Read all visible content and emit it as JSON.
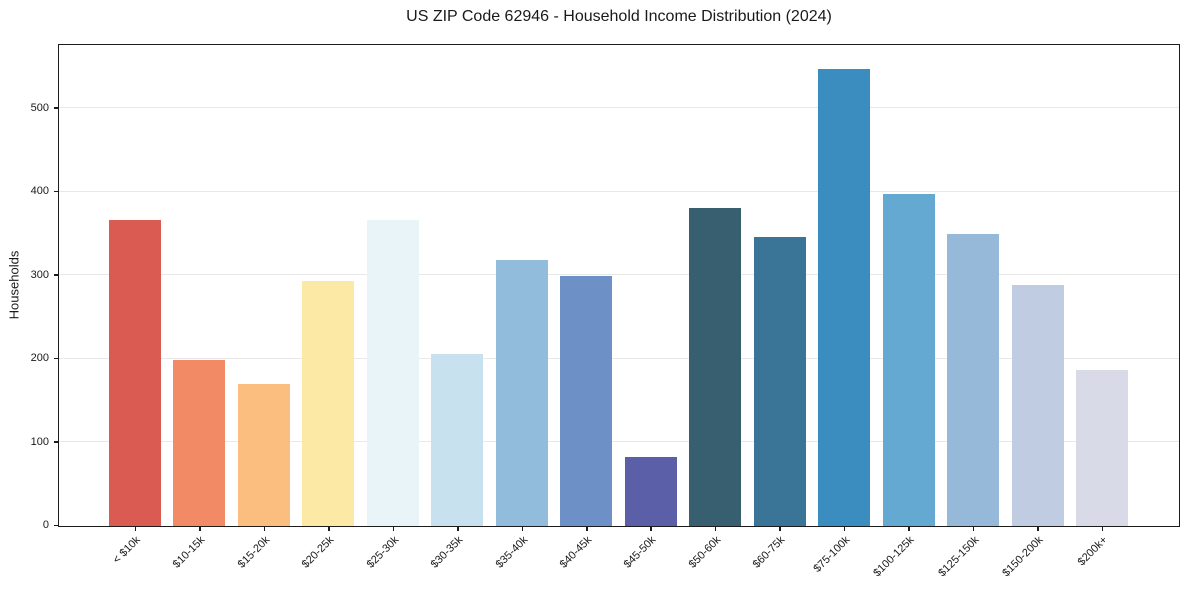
{
  "figure": {
    "background_color": "#ffffff"
  },
  "chart_data": {
    "type": "bar",
    "title": "US ZIP Code 62946 - Household Income Distribution (2024)",
    "xlabel": "",
    "ylabel": "Households",
    "categories": [
      "< $10k",
      "$10-15k",
      "$15-20k",
      "$20-25k",
      "$25-30k",
      "$30-35k",
      "$35-40k",
      "$40-45k",
      "$45-50k",
      "$50-60k",
      "$60-75k",
      "$75-100k",
      "$100-125k",
      "$125-150k",
      "$150-200k",
      "$200k+"
    ],
    "values": [
      367,
      199,
      170,
      293,
      367,
      206,
      319,
      299,
      83,
      381,
      346,
      547,
      398,
      350,
      289,
      187
    ],
    "bar_colors": [
      "#d95b52",
      "#f28a66",
      "#fcbe7e",
      "#fde9a6",
      "#e8f4f8",
      "#c7e2ee",
      "#92bcdb",
      "#6d90c6",
      "#5b5fa7",
      "#385f70",
      "#3a7496",
      "#3b8cbf",
      "#64a9d1",
      "#96b9d9",
      "#bfcce1",
      "#d8dae7"
    ],
    "yticks": [
      0,
      100,
      200,
      300,
      400,
      500
    ],
    "ylim": [
      0,
      575
    ],
    "grid": "horizontal",
    "gridline_color": "#e8e8e8",
    "axis_color": "#1c1c1c",
    "text_color": "#1a1a1a",
    "legend": "none",
    "xtick_rotation_deg": 45
  }
}
